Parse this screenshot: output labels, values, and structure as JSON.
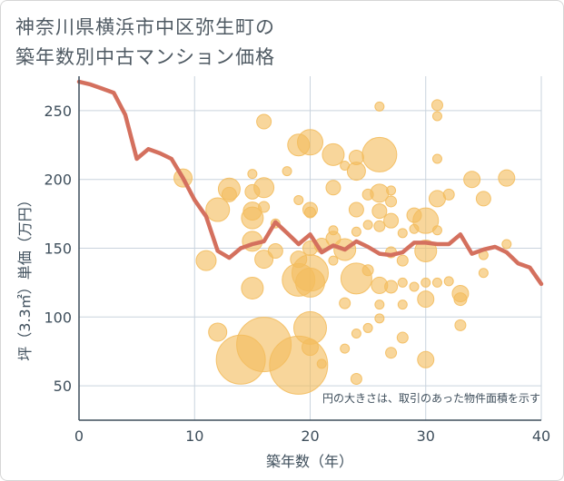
{
  "chart_data": {
    "type": "scatter",
    "title": "神奈川県横浜市中区弥生町の\n築年数別中古マンション価格",
    "title_lines": [
      "神奈川県横浜市中区弥生町の",
      "築年数別中古マンション価格"
    ],
    "xlabel": "築年数（年）",
    "ylabel": "坪（3.3㎡）単価（万円）",
    "note": "円の大きさは、取引のあった物件面積を示す",
    "xlim": [
      0,
      40
    ],
    "ylim": [
      25,
      275
    ],
    "x_ticks": [
      0,
      10,
      20,
      30,
      40
    ],
    "y_ticks": [
      50,
      100,
      150,
      200,
      250
    ],
    "grid": true,
    "colors": {
      "bubble": "#f3bd5e",
      "line": "#d4705e",
      "grid": "#c9d3de",
      "axis": "#3f4f5c"
    },
    "series": [
      {
        "kind": "bubble",
        "points": [
          {
            "x": 9,
            "y": 201,
            "s": 10
          },
          {
            "x": 11,
            "y": 141,
            "s": 11
          },
          {
            "x": 12,
            "y": 178,
            "s": 13
          },
          {
            "x": 12,
            "y": 89,
            "s": 10
          },
          {
            "x": 13,
            "y": 193,
            "s": 12
          },
          {
            "x": 13,
            "y": 189,
            "s": 8
          },
          {
            "x": 14,
            "y": 69,
            "s": 27
          },
          {
            "x": 15,
            "y": 204,
            "s": 5
          },
          {
            "x": 15,
            "y": 191,
            "s": 8
          },
          {
            "x": 15,
            "y": 177,
            "s": 10
          },
          {
            "x": 15,
            "y": 172,
            "s": 12
          },
          {
            "x": 15,
            "y": 155,
            "s": 11
          },
          {
            "x": 15,
            "y": 121,
            "s": 12
          },
          {
            "x": 16,
            "y": 242,
            "s": 8
          },
          {
            "x": 16,
            "y": 194,
            "s": 11
          },
          {
            "x": 16,
            "y": 180,
            "s": 6
          },
          {
            "x": 16,
            "y": 142,
            "s": 10
          },
          {
            "x": 16,
            "y": 80,
            "s": 30
          },
          {
            "x": 17,
            "y": 148,
            "s": 8
          },
          {
            "x": 17,
            "y": 168,
            "s": 5
          },
          {
            "x": 18,
            "y": 206,
            "s": 5
          },
          {
            "x": 19,
            "y": 225,
            "s": 12
          },
          {
            "x": 19,
            "y": 185,
            "s": 5
          },
          {
            "x": 19,
            "y": 142,
            "s": 9
          },
          {
            "x": 19,
            "y": 127,
            "s": 18
          },
          {
            "x": 19,
            "y": 65,
            "s": 32
          },
          {
            "x": 20,
            "y": 227,
            "s": 14
          },
          {
            "x": 20,
            "y": 178,
            "s": 8
          },
          {
            "x": 20,
            "y": 176,
            "s": 6
          },
          {
            "x": 20,
            "y": 150,
            "s": 8
          },
          {
            "x": 20,
            "y": 132,
            "s": 20
          },
          {
            "x": 20,
            "y": 125,
            "s": 16
          },
          {
            "x": 20,
            "y": 92,
            "s": 18
          },
          {
            "x": 20,
            "y": 78,
            "s": 9
          },
          {
            "x": 21,
            "y": 152,
            "s": 8
          },
          {
            "x": 21,
            "y": 66,
            "s": 5
          },
          {
            "x": 22,
            "y": 218,
            "s": 12
          },
          {
            "x": 22,
            "y": 194,
            "s": 8
          },
          {
            "x": 22,
            "y": 163,
            "s": 5
          },
          {
            "x": 22,
            "y": 157,
            "s": 8
          },
          {
            "x": 22,
            "y": 141,
            "s": 5
          },
          {
            "x": 23,
            "y": 210,
            "s": 5
          },
          {
            "x": 23,
            "y": 149,
            "s": 12
          },
          {
            "x": 23,
            "y": 110,
            "s": 6
          },
          {
            "x": 23,
            "y": 77,
            "s": 5
          },
          {
            "x": 24,
            "y": 216,
            "s": 8
          },
          {
            "x": 24,
            "y": 206,
            "s": 10
          },
          {
            "x": 24,
            "y": 178,
            "s": 8
          },
          {
            "x": 24,
            "y": 162,
            "s": 5
          },
          {
            "x": 24,
            "y": 128,
            "s": 17
          },
          {
            "x": 24,
            "y": 88,
            "s": 5
          },
          {
            "x": 24,
            "y": 55,
            "s": 6
          },
          {
            "x": 25,
            "y": 189,
            "s": 6
          },
          {
            "x": 25,
            "y": 167,
            "s": 5
          },
          {
            "x": 25,
            "y": 134,
            "s": 6
          },
          {
            "x": 25,
            "y": 92,
            "s": 5
          },
          {
            "x": 26,
            "y": 253,
            "s": 5
          },
          {
            "x": 26,
            "y": 218,
            "s": 19
          },
          {
            "x": 26,
            "y": 190,
            "s": 10
          },
          {
            "x": 26,
            "y": 177,
            "s": 8
          },
          {
            "x": 26,
            "y": 166,
            "s": 6
          },
          {
            "x": 26,
            "y": 123,
            "s": 9
          },
          {
            "x": 26,
            "y": 109,
            "s": 5
          },
          {
            "x": 26,
            "y": 99,
            "s": 5
          },
          {
            "x": 27,
            "y": 192,
            "s": 5
          },
          {
            "x": 27,
            "y": 184,
            "s": 6
          },
          {
            "x": 27,
            "y": 170,
            "s": 8
          },
          {
            "x": 27,
            "y": 147,
            "s": 6
          },
          {
            "x": 27,
            "y": 122,
            "s": 7
          },
          {
            "x": 27,
            "y": 74,
            "s": 6
          },
          {
            "x": 28,
            "y": 161,
            "s": 5
          },
          {
            "x": 28,
            "y": 141,
            "s": 6
          },
          {
            "x": 28,
            "y": 125,
            "s": 5
          },
          {
            "x": 28,
            "y": 85,
            "s": 6
          },
          {
            "x": 28,
            "y": 109,
            "s": 5
          },
          {
            "x": 29,
            "y": 174,
            "s": 8
          },
          {
            "x": 29,
            "y": 164,
            "s": 5
          },
          {
            "x": 29,
            "y": 122,
            "s": 5
          },
          {
            "x": 30,
            "y": 170,
            "s": 14
          },
          {
            "x": 30,
            "y": 148,
            "s": 12
          },
          {
            "x": 30,
            "y": 125,
            "s": 5
          },
          {
            "x": 30,
            "y": 113,
            "s": 9
          },
          {
            "x": 30,
            "y": 69,
            "s": 9
          },
          {
            "x": 31,
            "y": 254,
            "s": 6
          },
          {
            "x": 31,
            "y": 246,
            "s": 5
          },
          {
            "x": 31,
            "y": 215,
            "s": 5
          },
          {
            "x": 31,
            "y": 186,
            "s": 9
          },
          {
            "x": 31,
            "y": 163,
            "s": 5
          },
          {
            "x": 31,
            "y": 125,
            "s": 5
          },
          {
            "x": 32,
            "y": 189,
            "s": 6
          },
          {
            "x": 32,
            "y": 126,
            "s": 5
          },
          {
            "x": 33,
            "y": 117,
            "s": 9
          },
          {
            "x": 33,
            "y": 113,
            "s": 7
          },
          {
            "x": 33,
            "y": 94,
            "s": 6
          },
          {
            "x": 34,
            "y": 200,
            "s": 9
          },
          {
            "x": 35,
            "y": 186,
            "s": 8
          },
          {
            "x": 35,
            "y": 145,
            "s": 5
          },
          {
            "x": 35,
            "y": 132,
            "s": 5
          },
          {
            "x": 37,
            "y": 201,
            "s": 9
          },
          {
            "x": 37,
            "y": 153,
            "s": 5
          }
        ]
      },
      {
        "kind": "line",
        "points": [
          {
            "x": 0,
            "y": 271
          },
          {
            "x": 1,
            "y": 269
          },
          {
            "x": 2,
            "y": 266
          },
          {
            "x": 3,
            "y": 263
          },
          {
            "x": 4,
            "y": 247
          },
          {
            "x": 5,
            "y": 215
          },
          {
            "x": 6,
            "y": 222
          },
          {
            "x": 7,
            "y": 219
          },
          {
            "x": 8,
            "y": 215
          },
          {
            "x": 9,
            "y": 201
          },
          {
            "x": 10,
            "y": 185
          },
          {
            "x": 11,
            "y": 173
          },
          {
            "x": 12,
            "y": 148
          },
          {
            "x": 13,
            "y": 143
          },
          {
            "x": 14,
            "y": 150
          },
          {
            "x": 15,
            "y": 153
          },
          {
            "x": 16,
            "y": 155
          },
          {
            "x": 17,
            "y": 169
          },
          {
            "x": 18,
            "y": 161
          },
          {
            "x": 19,
            "y": 153
          },
          {
            "x": 20,
            "y": 160
          },
          {
            "x": 21,
            "y": 147
          },
          {
            "x": 22,
            "y": 152
          },
          {
            "x": 23,
            "y": 149
          },
          {
            "x": 24,
            "y": 155
          },
          {
            "x": 25,
            "y": 151
          },
          {
            "x": 26,
            "y": 146
          },
          {
            "x": 27,
            "y": 145
          },
          {
            "x": 28,
            "y": 147
          },
          {
            "x": 29,
            "y": 154
          },
          {
            "x": 30,
            "y": 154
          },
          {
            "x": 31,
            "y": 153
          },
          {
            "x": 32,
            "y": 153
          },
          {
            "x": 33,
            "y": 160
          },
          {
            "x": 34,
            "y": 146
          },
          {
            "x": 35,
            "y": 149
          },
          {
            "x": 36,
            "y": 151
          },
          {
            "x": 37,
            "y": 147
          },
          {
            "x": 38,
            "y": 139
          },
          {
            "x": 39,
            "y": 136
          },
          {
            "x": 40,
            "y": 124
          }
        ]
      }
    ]
  }
}
